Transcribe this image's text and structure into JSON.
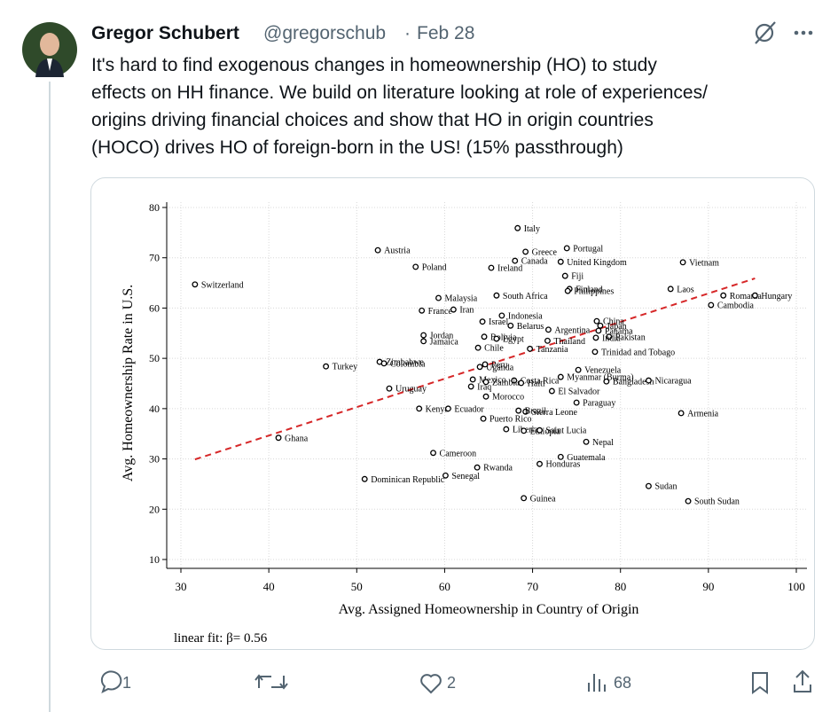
{
  "tweet": {
    "author": "Gregor Schubert",
    "handle": "@gregorschub",
    "date": "Feb 28",
    "text_lines": [
      "It's hard to find exogenous changes in homeownership (HO) to study",
      "effects on HH finance. We build on literature looking at role of experiences/",
      "origins driving financial choices and show that HO in origin countries",
      "(HOCO) drives HO of foreign-born in the US! (15% passthrough)"
    ],
    "replies": 1,
    "likes": 2,
    "views": 68
  },
  "chart_data": {
    "type": "scatter",
    "x_label": "Avg. Assigned Homeownership in Country of Origin",
    "y_label": "Avg. Homeownership Rate in U.S.",
    "annotation": "linear fit: β= 0.56",
    "xlim": [
      30,
      100
    ],
    "ylim": [
      10,
      80
    ],
    "xticks": [
      30,
      40,
      50,
      60,
      70,
      80,
      90,
      100
    ],
    "yticks": [
      10,
      20,
      30,
      40,
      50,
      60,
      70,
      80
    ],
    "grid": true,
    "color": "#000000",
    "point_labels": [
      "Italy",
      "Austria",
      "Portugal",
      "Greece",
      "Canada",
      "United Kingdom",
      "Vietnam",
      "Poland",
      "Ireland",
      "Fiji",
      "Switzerland",
      "Finland",
      "Philippines",
      "Laos",
      "Romania",
      "Hungary",
      "South Africa",
      "Malaysia",
      "Cambodia",
      "France",
      "Iran",
      "Indonesia",
      "Israel",
      "China",
      "Belarus",
      "Japan",
      "Argentina",
      "Panama",
      "Jordan",
      "Bolivia",
      "Pakistan",
      "India",
      "Egypt",
      "Thailand",
      "Jamaica",
      "Chile",
      "Tanzania",
      "Trinidad and Tobago",
      "Zimbabwe",
      "Colombia",
      "Turkey",
      "Peru",
      "Uganda",
      "Venezuela",
      "Myanmar (Burma)",
      "Mexico",
      "Costa Rica",
      "Zambia",
      "Haiti",
      "Bangladesh",
      "Nicaragua",
      "Iraq",
      "Uruguay",
      "El Salvador",
      "Morocco",
      "Paraguay",
      "Kenya",
      "Ecuador",
      "Sierra Leone",
      "Brazil",
      "Armenia",
      "Puerto Rico",
      "Liberia",
      "Ethiopia",
      "Saint Lucia",
      "Ghana",
      "Nepal",
      "Cameroon",
      "Guatemala",
      "Honduras",
      "Rwanda",
      "Dominican Republic",
      "Senegal",
      "Sudan",
      "Guinea",
      "South Sudan"
    ],
    "x": [
      68.3,
      52.4,
      73.9,
      69.2,
      68.0,
      73.2,
      87.1,
      56.7,
      65.3,
      73.7,
      31.6,
      74.2,
      74.0,
      85.7,
      91.7,
      95.3,
      65.9,
      59.3,
      90.3,
      57.4,
      61.0,
      66.5,
      64.3,
      77.3,
      67.5,
      77.7,
      71.8,
      77.5,
      57.6,
      64.5,
      78.7,
      77.2,
      65.9,
      71.7,
      57.6,
      63.8,
      69.7,
      77.1,
      52.6,
      53.1,
      46.5,
      64.6,
      64.0,
      75.2,
      73.2,
      63.2,
      67.9,
      64.7,
      68.7,
      78.4,
      83.2,
      63.0,
      53.7,
      72.2,
      64.7,
      75.0,
      57.1,
      60.4,
      69.2,
      68.4,
      86.9,
      64.4,
      67.0,
      69.0,
      70.8,
      41.1,
      76.1,
      58.7,
      73.2,
      70.8,
      63.7,
      50.9,
      60.1,
      83.2,
      69.0,
      87.7
    ],
    "values": [
      75.9,
      71.5,
      71.9,
      71.2,
      69.4,
      69.2,
      69.1,
      68.2,
      68.0,
      66.4,
      64.7,
      63.8,
      63.4,
      63.8,
      62.5,
      62.5,
      62.5,
      62.0,
      60.6,
      59.5,
      59.7,
      58.5,
      57.3,
      57.4,
      56.5,
      56.5,
      55.7,
      55.5,
      54.6,
      54.3,
      54.3,
      54.1,
      53.9,
      53.5,
      53.4,
      52.1,
      51.9,
      51.3,
      49.3,
      49.0,
      48.4,
      48.8,
      48.3,
      47.7,
      46.3,
      45.8,
      45.6,
      45.3,
      45.1,
      45.4,
      45.6,
      44.4,
      44.0,
      43.5,
      42.4,
      41.2,
      40.0,
      40.0,
      39.4,
      39.6,
      39.1,
      38.0,
      35.9,
      35.6,
      35.7,
      34.2,
      33.4,
      31.2,
      30.4,
      29.0,
      28.3,
      26.0,
      26.7,
      24.6,
      22.2,
      21.6
    ],
    "fit_line": {
      "x": [
        31.6,
        95.3
      ],
      "y": [
        29.9,
        65.9
      ],
      "color": "#d62728"
    }
  }
}
